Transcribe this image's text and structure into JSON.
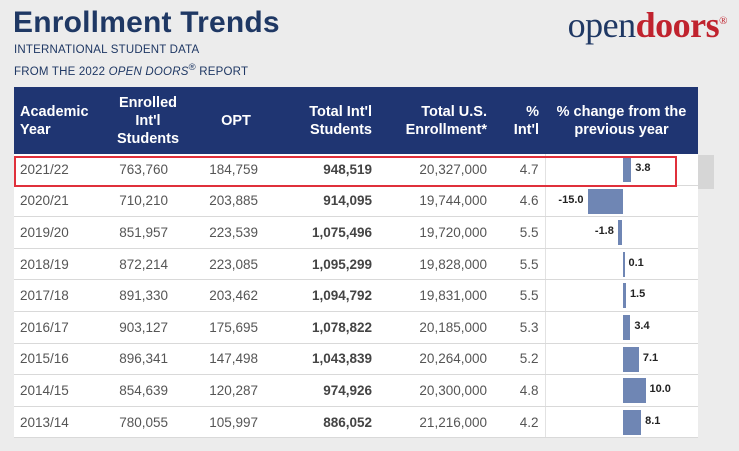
{
  "header": {
    "title": "Enrollment Trends",
    "subtitle_line1": "INTERNATIONAL STUDENT DATA",
    "subtitle_line2_prefix": "FROM THE 2022 ",
    "subtitle_line2_italic": "OPEN DOORS",
    "subtitle_line2_reg": "®",
    "subtitle_line2_suffix": " REPORT"
  },
  "logo": {
    "part1": "open",
    "part2": "doors",
    "reg": "®"
  },
  "table": {
    "columns": [
      "Academic Year",
      "Enrolled Int'l Students",
      "OPT",
      "Total Int'l Students",
      "Total U.S. Enrollment*",
      "% Int'l",
      "% change from the previous year"
    ],
    "rows": [
      {
        "year": "2021/22",
        "enrolled": "763,760",
        "opt": "184,759",
        "total": "948,519",
        "us": "20,327,000",
        "pct": "4.7",
        "change_label": "3.8"
      },
      {
        "year": "2020/21",
        "enrolled": "710,210",
        "opt": "203,885",
        "total": "914,095",
        "us": "19,744,000",
        "pct": "4.6",
        "change_label": "-15.0"
      },
      {
        "year": "2019/20",
        "enrolled": "851,957",
        "opt": "223,539",
        "total": "1,075,496",
        "us": "19,720,000",
        "pct": "5.5",
        "change_label": "-1.8"
      },
      {
        "year": "2018/19",
        "enrolled": "872,214",
        "opt": "223,085",
        "total": "1,095,299",
        "us": "19,828,000",
        "pct": "5.5",
        "change_label": "0.1"
      },
      {
        "year": "2017/18",
        "enrolled": "891,330",
        "opt": "203,462",
        "total": "1,094,792",
        "us": "19,831,000",
        "pct": "5.5",
        "change_label": "1.5"
      },
      {
        "year": "2016/17",
        "enrolled": "903,127",
        "opt": "175,695",
        "total": "1,078,822",
        "us": "20,185,000",
        "pct": "5.3",
        "change_label": "3.4"
      },
      {
        "year": "2015/16",
        "enrolled": "896,341",
        "opt": "147,498",
        "total": "1,043,839",
        "us": "20,264,000",
        "pct": "5.2",
        "change_label": "7.1"
      },
      {
        "year": "2014/15",
        "enrolled": "854,639",
        "opt": "120,287",
        "total": "974,926",
        "us": "20,300,000",
        "pct": "4.8",
        "change_label": "10.0"
      },
      {
        "year": "2013/14",
        "enrolled": "780,055",
        "opt": "105,997",
        "total": "886,052",
        "us": "21,216,000",
        "pct": "4.2",
        "change_label": "8.1"
      }
    ],
    "highlighted_row": "2021/22"
  },
  "chart_data": {
    "type": "bar",
    "categories": [
      "2021/22",
      "2020/21",
      "2019/20",
      "2018/19",
      "2017/18",
      "2016/17",
      "2015/16",
      "2014/15",
      "2013/14"
    ],
    "values": [
      3.8,
      -15.0,
      -1.8,
      0.1,
      1.5,
      3.4,
      7.1,
      10.0,
      8.1
    ],
    "title": "% change from the previous year",
    "orientation": "horizontal",
    "xlim": [
      -15,
      10
    ]
  },
  "colors": {
    "header_bg": "#1f3572",
    "bar": "#6f86b4",
    "highlight": "#e0303b",
    "title": "#1f3864",
    "brand_red": "#c0232e"
  }
}
